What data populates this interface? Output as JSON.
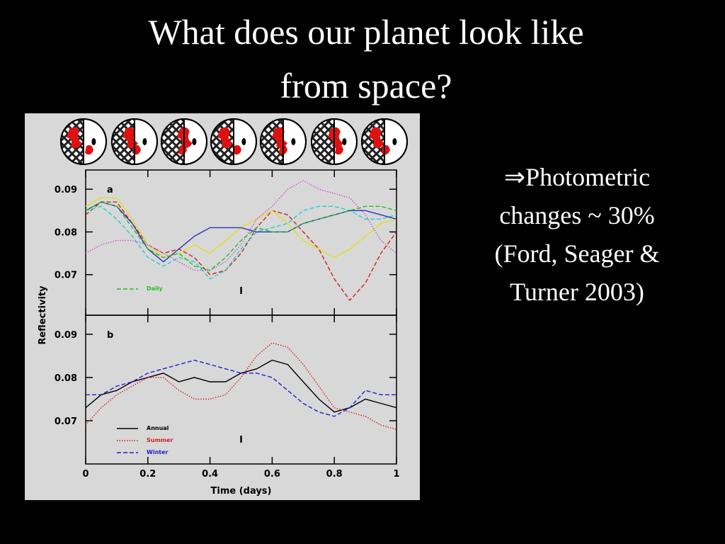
{
  "title": [
    "What does our planet look like",
    "from space?"
  ],
  "bullet": [
    "⇒Photometric",
    "changes ~ 30%",
    "(Ford, Seager &",
    "Turner 2003)"
  ],
  "chart_data": [
    {
      "type": "line",
      "panel_label": "a",
      "ylabel": "Reflectivity",
      "x": [
        0,
        0.05,
        0.1,
        0.15,
        0.2,
        0.25,
        0.3,
        0.35,
        0.4,
        0.45,
        0.5,
        0.55,
        0.6,
        0.65,
        0.7,
        0.75,
        0.8,
        0.85,
        0.9,
        0.95,
        1
      ],
      "xlim": [
        0,
        1
      ],
      "xticks": [
        0,
        0.2,
        0.4,
        0.6,
        0.8,
        1
      ],
      "ylim": [
        0.0605,
        0.0945
      ],
      "yticks": [
        0.07,
        0.08,
        0.09
      ],
      "annotation": "I",
      "series": [
        {
          "color": "#d02020",
          "style": "dashed",
          "values": [
            0.084,
            0.087,
            0.087,
            0.082,
            0.077,
            0.075,
            0.076,
            0.074,
            0.07,
            0.071,
            0.075,
            0.081,
            0.085,
            0.084,
            0.08,
            0.076,
            0.069,
            0.064,
            0.068,
            0.075,
            0.08
          ]
        },
        {
          "color": "#e0e020",
          "style": "solid",
          "values": [
            0.086,
            0.088,
            0.088,
            0.083,
            0.077,
            0.074,
            0.075,
            0.077,
            0.075,
            0.078,
            0.081,
            0.083,
            0.085,
            0.082,
            0.078,
            0.076,
            0.074,
            0.076,
            0.079,
            0.082,
            0.083
          ]
        },
        {
          "color": "#20d0d0",
          "style": "dashed",
          "values": [
            0.085,
            0.086,
            0.083,
            0.079,
            0.074,
            0.072,
            0.074,
            0.073,
            0.069,
            0.071,
            0.076,
            0.08,
            0.081,
            0.082,
            0.085,
            0.086,
            0.086,
            0.085,
            0.083,
            0.083,
            0.084
          ]
        },
        {
          "color": "#d050d0",
          "style": "dotted",
          "values": [
            0.075,
            0.077,
            0.078,
            0.078,
            0.077,
            0.075,
            0.073,
            0.071,
            0.071,
            0.073,
            0.077,
            0.083,
            0.086,
            0.09,
            0.092,
            0.09,
            0.089,
            0.088,
            0.084,
            0.078,
            0.075
          ]
        },
        {
          "color": "#3030c0",
          "style": "solid",
          "values": [
            0.085,
            0.087,
            0.086,
            0.082,
            0.076,
            0.073,
            0.076,
            0.079,
            0.081,
            0.081,
            0.081,
            0.08,
            0.08,
            0.08,
            0.082,
            0.083,
            0.084,
            0.085,
            0.085,
            0.084,
            0.083
          ]
        },
        {
          "name": "Daily",
          "color": "#20c020",
          "style": "dashed",
          "values": [
            0.085,
            0.087,
            0.086,
            0.081,
            0.076,
            0.074,
            0.075,
            0.072,
            0.071,
            0.074,
            0.078,
            0.081,
            0.08,
            0.08,
            0.082,
            0.083,
            0.084,
            0.085,
            0.086,
            0.086,
            0.085
          ]
        }
      ]
    },
    {
      "type": "line",
      "panel_label": "b",
      "xlabel": "Time (days)",
      "x": [
        0,
        0.05,
        0.1,
        0.15,
        0.2,
        0.25,
        0.3,
        0.35,
        0.4,
        0.45,
        0.5,
        0.55,
        0.6,
        0.65,
        0.7,
        0.75,
        0.8,
        0.85,
        0.9,
        0.95,
        1
      ],
      "xlim": [
        0,
        1
      ],
      "xticks": [
        0,
        0.2,
        0.4,
        0.6,
        0.8,
        1
      ],
      "ylim": [
        0.06,
        0.0944
      ],
      "yticks": [
        0.07,
        0.08,
        0.09
      ],
      "annotation": "I",
      "series": [
        {
          "name": "Annual",
          "color": "#000000",
          "style": "solid",
          "values": [
            0.073,
            0.076,
            0.077,
            0.079,
            0.08,
            0.081,
            0.079,
            0.08,
            0.079,
            0.079,
            0.081,
            0.082,
            0.084,
            0.083,
            0.079,
            0.075,
            0.072,
            0.073,
            0.075,
            0.074,
            0.073
          ]
        },
        {
          "name": "Summer",
          "color": "#d02020",
          "style": "dotted",
          "values": [
            0.069,
            0.073,
            0.076,
            0.078,
            0.08,
            0.08,
            0.077,
            0.075,
            0.075,
            0.076,
            0.08,
            0.085,
            0.088,
            0.087,
            0.083,
            0.078,
            0.073,
            0.072,
            0.071,
            0.069,
            0.068
          ]
        },
        {
          "name": "Winter",
          "color": "#2020d0",
          "style": "dashed",
          "values": [
            0.076,
            0.076,
            0.078,
            0.079,
            0.081,
            0.082,
            0.083,
            0.084,
            0.083,
            0.082,
            0.081,
            0.081,
            0.08,
            0.077,
            0.074,
            0.072,
            0.071,
            0.073,
            0.077,
            0.076,
            0.076
          ]
        }
      ]
    }
  ]
}
